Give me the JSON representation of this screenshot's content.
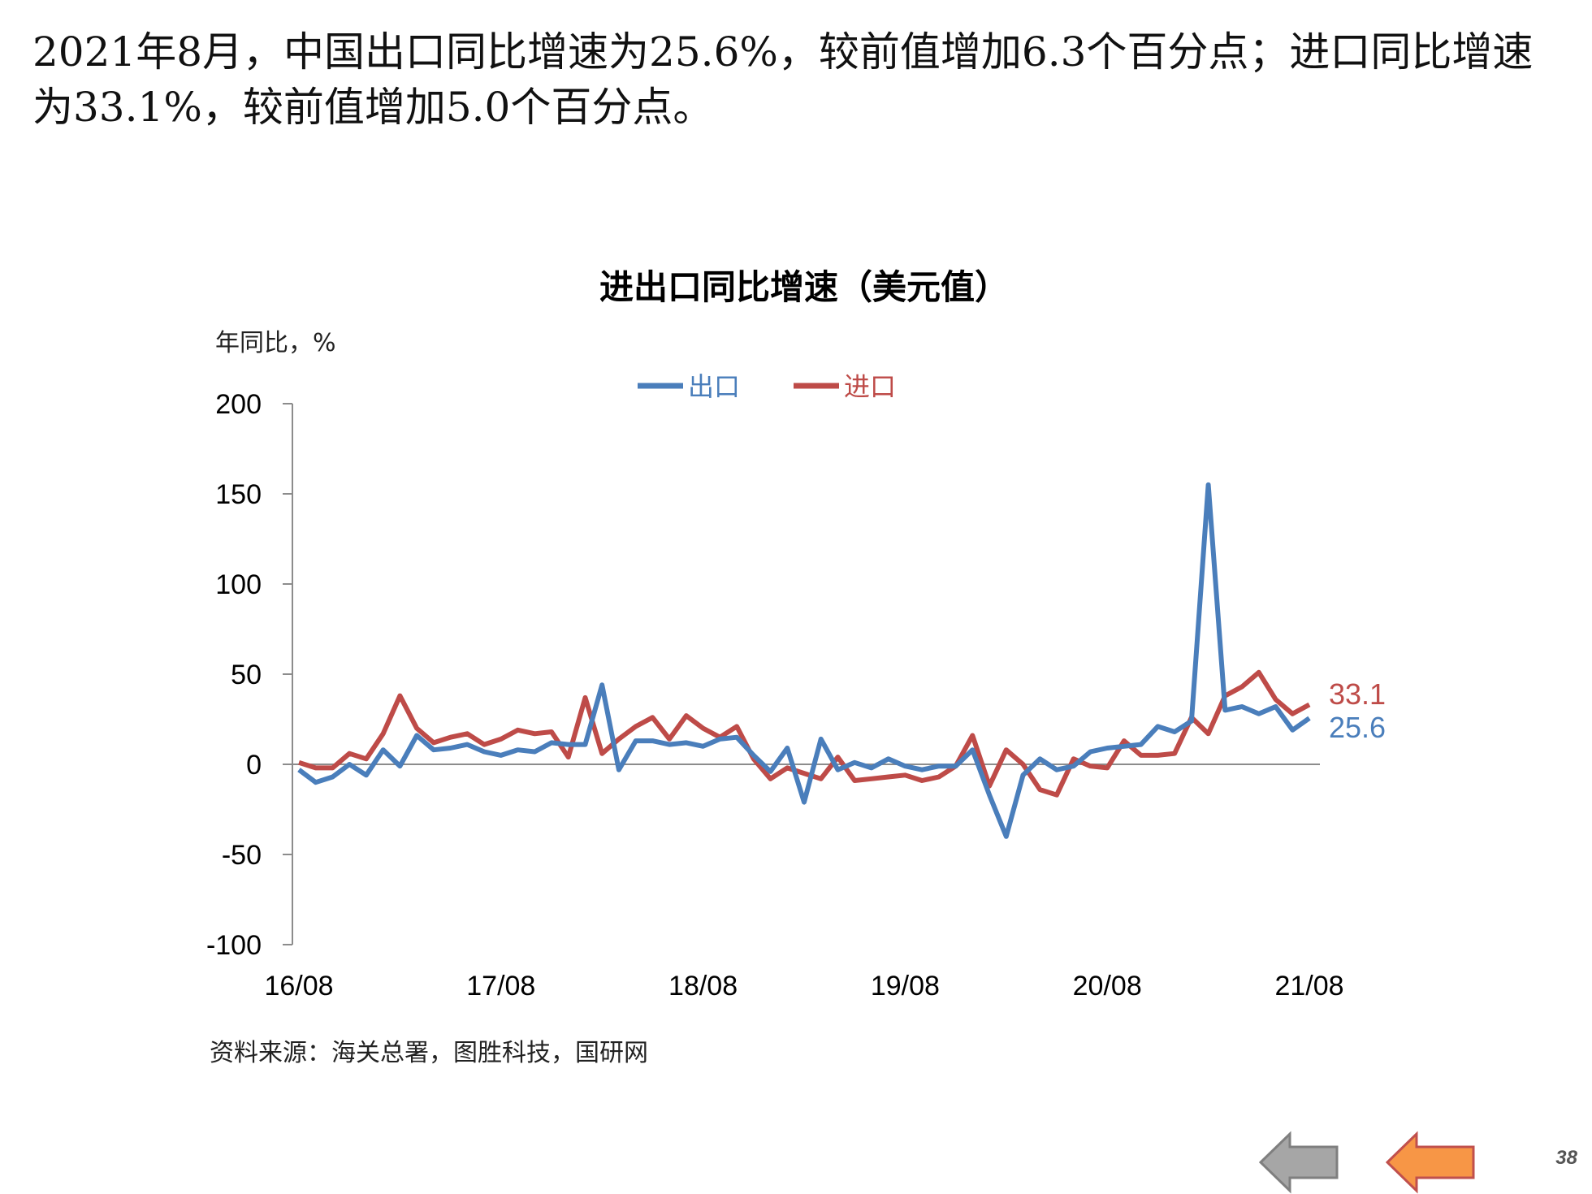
{
  "headline": "2021年8月，中国出口同比增速为25.6%，较前值增加6.3个百分点；进口同比增速为33.1%，较前值增加5.0个百分点。",
  "page_number": "38",
  "nav": {
    "prev_icon": "gray-left-arrow-icon",
    "next_icon": "orange-left-arrow-icon"
  },
  "chart_data": {
    "type": "line",
    "title": "进出口同比增速（美元值）",
    "ylabel": "年同比，%",
    "source": "资料来源：海关总署，图胜科技，国研网",
    "ylim": [
      -100,
      200
    ],
    "yticks": [
      200,
      150,
      100,
      50,
      0,
      -50,
      -100
    ],
    "xtick_labels": [
      "16/08",
      "17/08",
      "18/08",
      "19/08",
      "20/08",
      "21/08"
    ],
    "x": [
      "16/08",
      "16/09",
      "16/10",
      "16/11",
      "16/12",
      "17/01",
      "17/02",
      "17/03",
      "17/04",
      "17/05",
      "17/06",
      "17/07",
      "17/08",
      "17/09",
      "17/10",
      "17/11",
      "17/12",
      "18/01",
      "18/02",
      "18/03",
      "18/04",
      "18/05",
      "18/06",
      "18/07",
      "18/08",
      "18/09",
      "18/10",
      "18/11",
      "18/12",
      "19/01",
      "19/02",
      "19/03",
      "19/04",
      "19/05",
      "19/06",
      "19/07",
      "19/08",
      "19/09",
      "19/10",
      "19/11",
      "19/12",
      "20/01",
      "20/02",
      "20/03",
      "20/04",
      "20/05",
      "20/06",
      "20/07",
      "20/08",
      "20/09",
      "20/10",
      "20/11",
      "20/12",
      "21/01",
      "21/02",
      "21/03",
      "21/04",
      "21/05",
      "21/06",
      "21/07",
      "21/08"
    ],
    "legend_position": "top-center",
    "end_labels": [
      "33.1",
      "25.6"
    ],
    "series": [
      {
        "name": "出口",
        "color": "#4a7ebb",
        "values": [
          -3,
          -10,
          -7,
          0,
          -6,
          8,
          -1,
          16,
          8,
          9,
          11,
          7,
          5,
          8,
          7,
          12,
          11,
          11,
          44,
          -3,
          13,
          13,
          11,
          12,
          10,
          14,
          15,
          5,
          -4,
          9,
          -21,
          14,
          -3,
          1,
          -2,
          3,
          -1,
          -3,
          -1,
          -1,
          8,
          -17,
          -40,
          -6,
          3,
          -3,
          -1,
          7,
          9,
          10,
          11,
          21,
          18,
          24,
          155,
          30,
          32,
          28,
          32,
          19,
          25.6
        ]
      },
      {
        "name": "进口",
        "color": "#be4b48",
        "values": [
          1,
          -2,
          -2,
          6,
          3,
          17,
          38,
          20,
          12,
          15,
          17,
          11,
          14,
          19,
          17,
          18,
          4,
          37,
          6,
          14,
          21,
          26,
          14,
          27,
          20,
          15,
          21,
          3,
          -8,
          -2,
          -5,
          -8,
          4,
          -9,
          -8,
          -7,
          -6,
          -9,
          -7,
          -1,
          16,
          -12,
          8,
          0,
          -14,
          -17,
          3,
          -1,
          -2,
          13,
          5,
          5,
          6,
          26,
          17,
          38,
          43,
          51,
          36,
          28,
          33.1
        ]
      }
    ]
  }
}
